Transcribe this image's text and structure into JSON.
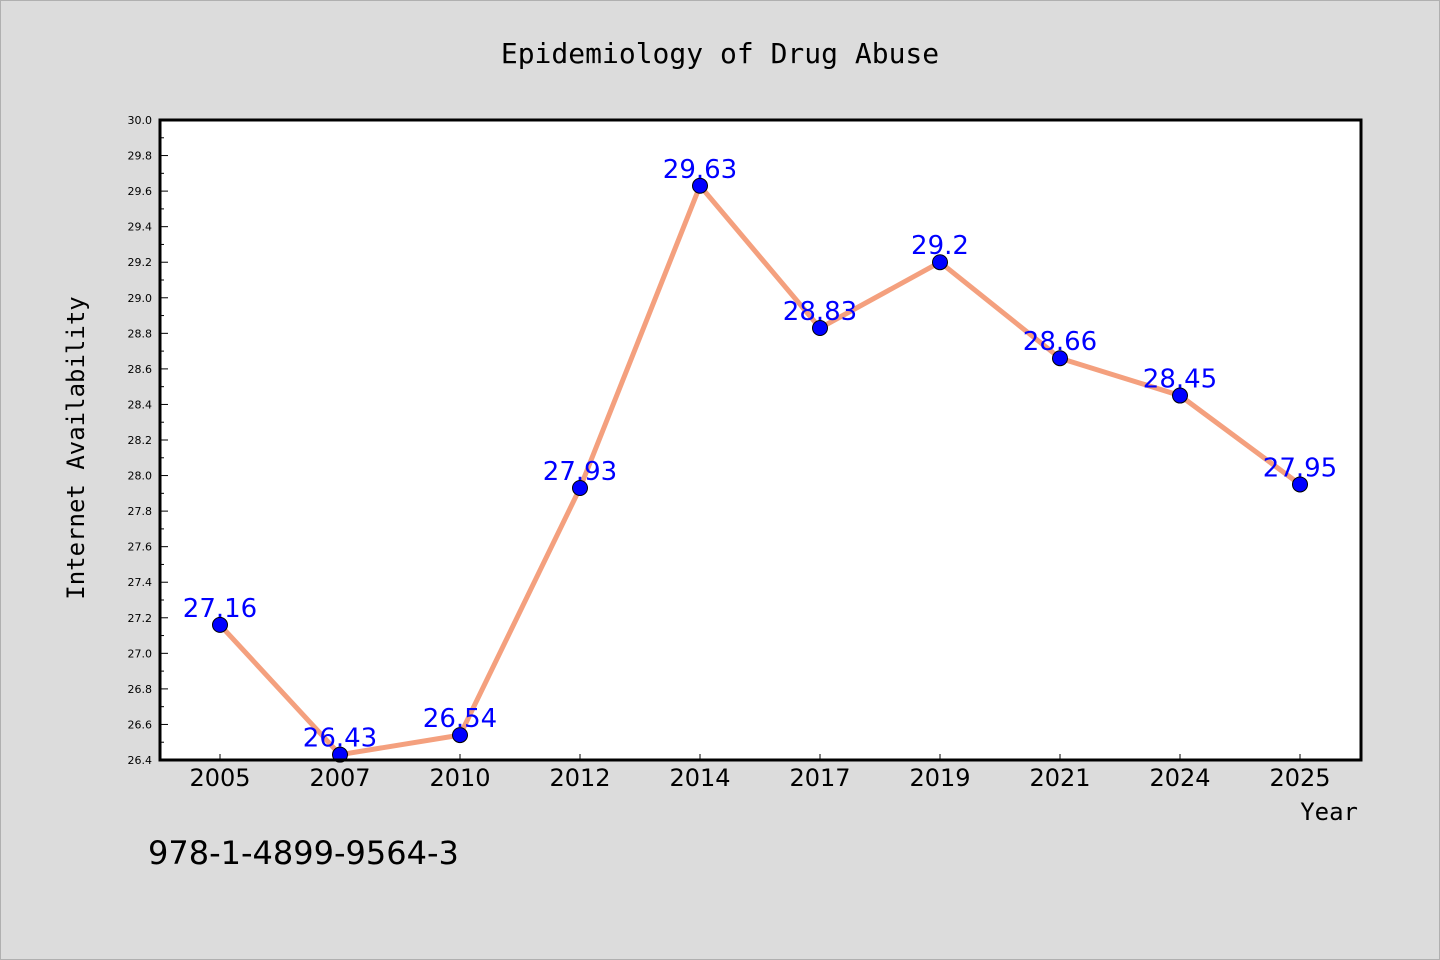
{
  "footer_text": "978-1-4899-9564-3",
  "colors": {
    "background": "#dcdcdc",
    "plot_background": "#ffffff",
    "line": "#f4a07e",
    "marker": "#0000ff",
    "data_label": "#0000ff"
  },
  "chart_data": {
    "type": "line",
    "title": "Epidemiology of Drug Abuse",
    "xlabel": "Year",
    "ylabel": "Internet Availability",
    "categories": [
      "2005",
      "2007",
      "2010",
      "2012",
      "2014",
      "2017",
      "2019",
      "2021",
      "2024",
      "2025"
    ],
    "values": [
      27.16,
      26.43,
      26.54,
      27.93,
      29.63,
      28.83,
      29.2,
      28.66,
      28.45,
      27.95
    ],
    "data_labels": [
      "27.16",
      "26.43",
      "26.54",
      "27.93",
      "29.63",
      "28.83",
      "29.2",
      "28.66",
      "28.45",
      "27.95"
    ],
    "ylim": [
      26.4,
      30.0
    ],
    "yticks": [
      "26.4",
      "26.6",
      "26.8",
      "27.0",
      "27.2",
      "27.4",
      "27.6",
      "27.8",
      "28.0",
      "28.2",
      "28.4",
      "28.6",
      "28.8",
      "29.0",
      "29.2",
      "29.4",
      "29.6",
      "29.8",
      "30.0"
    ],
    "grid": false,
    "legend": "none"
  }
}
